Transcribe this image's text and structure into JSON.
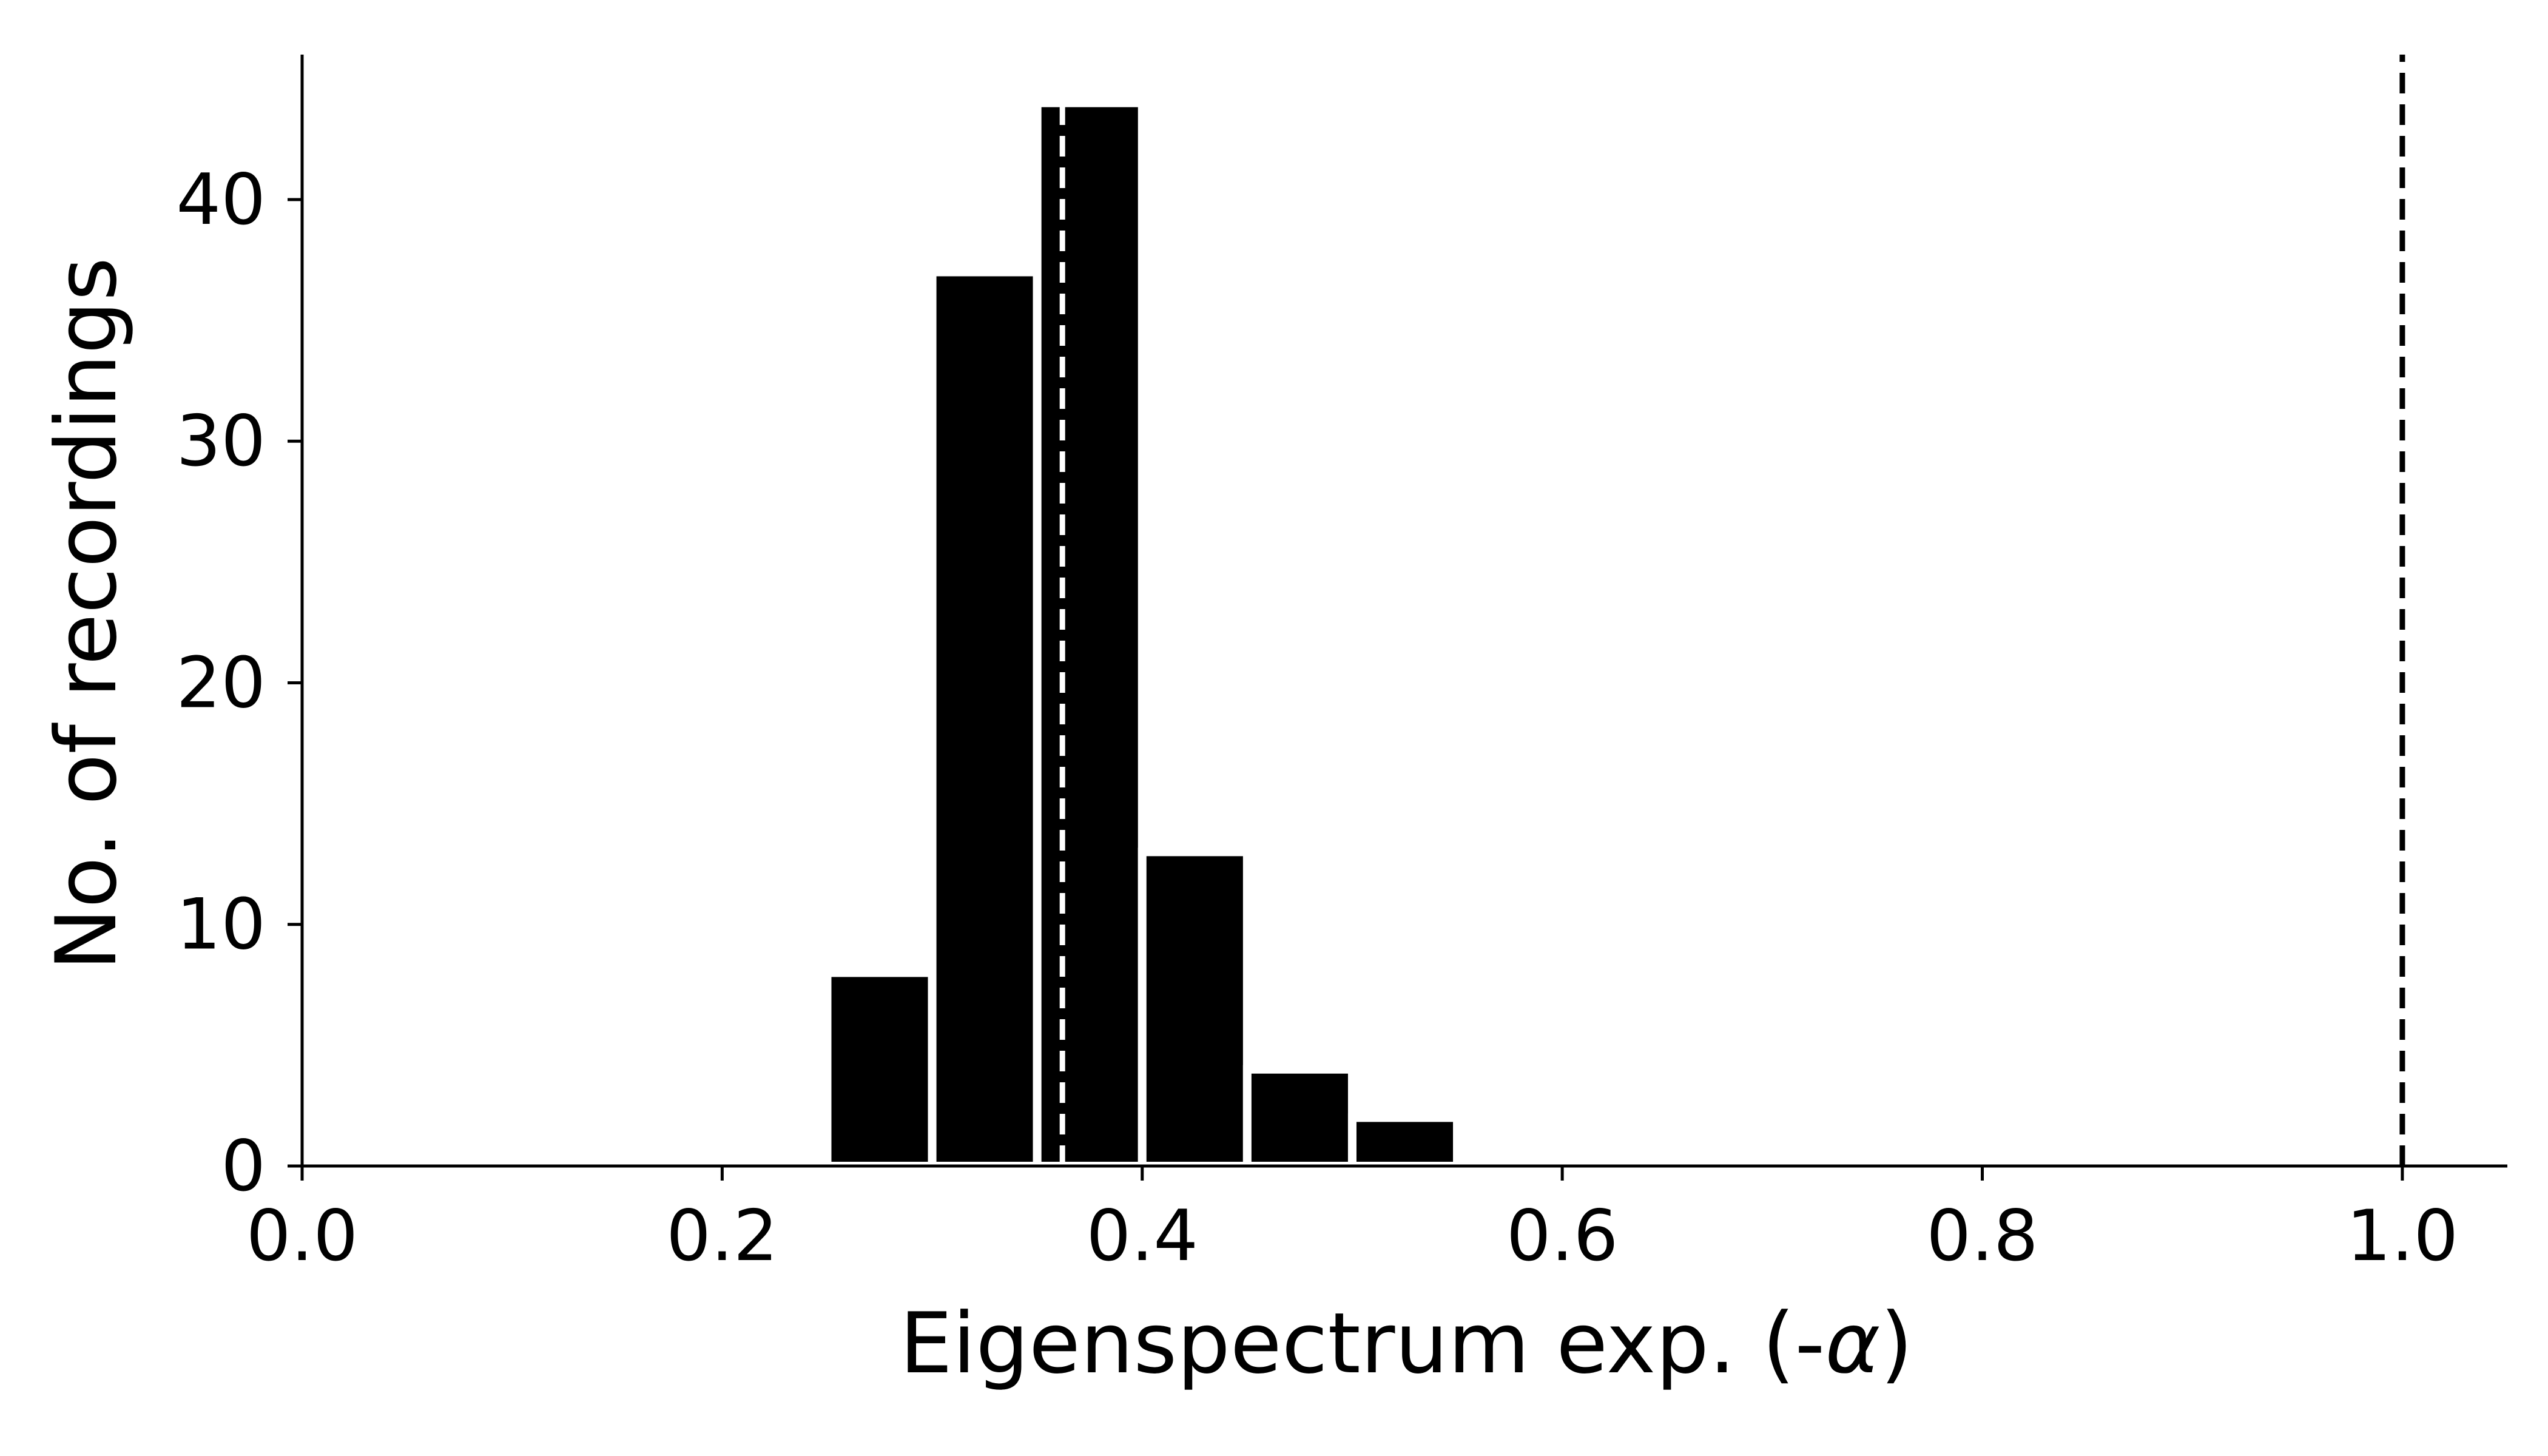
{
  "chart_data": {
    "type": "bar",
    "title": "",
    "xlabel": "Eigenspectrum exp. (-",
    "xlabel_symbol": "α",
    "xlabel_suffix": ")",
    "ylabel": "No. of recordings",
    "xlim": [
      0.0,
      1.05
    ],
    "ylim": [
      0,
      46
    ],
    "x_ticks": [
      "0.0",
      "0.2",
      "0.4",
      "0.6",
      "0.8",
      "1.0"
    ],
    "y_ticks": [
      "0",
      "10",
      "20",
      "30",
      "40"
    ],
    "bins": [
      {
        "start": 0.25,
        "end": 0.3,
        "count": 8
      },
      {
        "start": 0.3,
        "end": 0.35,
        "count": 37
      },
      {
        "start": 0.35,
        "end": 0.4,
        "count": 44
      },
      {
        "start": 0.4,
        "end": 0.45,
        "count": 13
      },
      {
        "start": 0.45,
        "end": 0.5,
        "count": 4
      },
      {
        "start": 0.5,
        "end": 0.55,
        "count": 2
      }
    ],
    "reference_lines": [
      {
        "x": 0.362,
        "style": "dashed",
        "color": "#ffffff"
      },
      {
        "x": 1.0,
        "style": "dashed",
        "color": "#000000"
      }
    ],
    "bar_color": "#000000",
    "bar_edge_color": "#ffffff",
    "grid": false,
    "legend": "none"
  }
}
